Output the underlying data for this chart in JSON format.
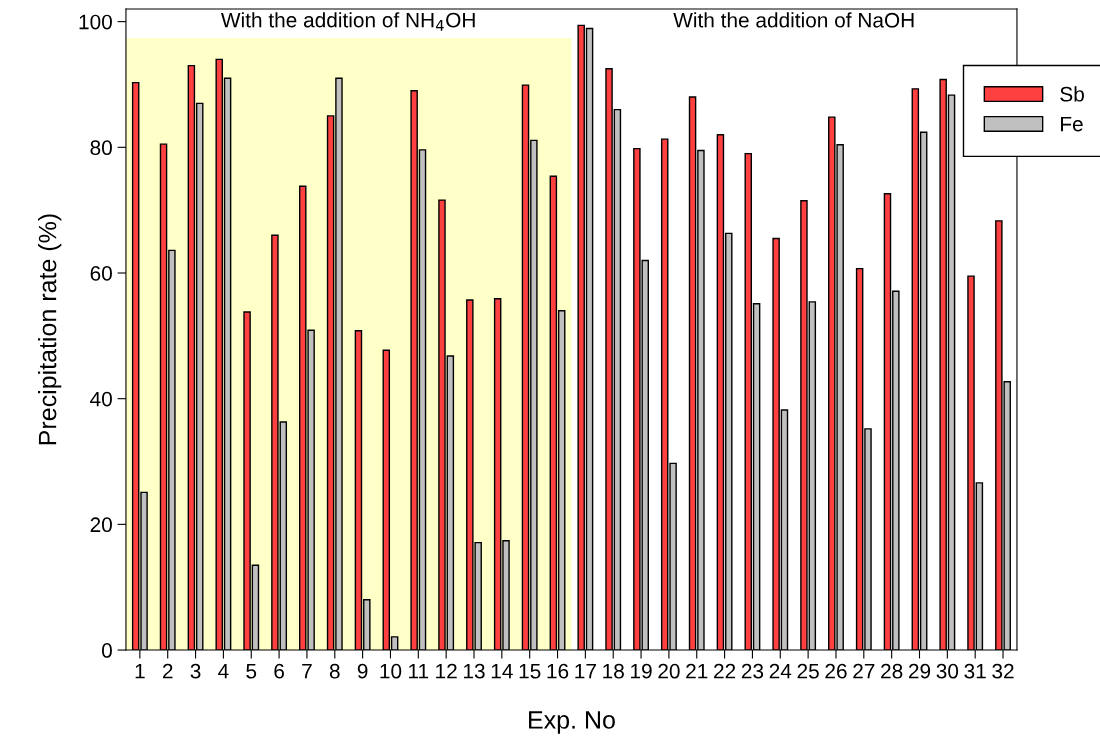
{
  "chart_data": {
    "type": "bar",
    "xlabel": "Exp. No",
    "ylabel": "Precipitation rate (%)",
    "categories": [
      "1",
      "2",
      "3",
      "4",
      "5",
      "6",
      "7",
      "8",
      "9",
      "10",
      "11",
      "12",
      "13",
      "14",
      "15",
      "16",
      "17",
      "18",
      "19",
      "20",
      "21",
      "22",
      "23",
      "24",
      "25",
      "26",
      "27",
      "28",
      "29",
      "30",
      "31",
      "32"
    ],
    "series": [
      {
        "name": "Sb",
        "color": "#ff4040",
        "values": [
          90.3,
          80.5,
          93,
          94,
          53.8,
          66,
          73.8,
          85,
          50.8,
          47.7,
          89,
          71.6,
          55.7,
          55.9,
          89.9,
          75.4,
          99.4,
          92.5,
          79.8,
          81.3,
          88,
          82,
          79,
          65.5,
          71.5,
          84.8,
          60.7,
          72.6,
          89.3,
          90.8,
          59.5,
          68.3
        ]
      },
      {
        "name": "Fe",
        "color": "#c0c0c0",
        "values": [
          25.1,
          63.6,
          87,
          91,
          13.5,
          36.3,
          50.9,
          91,
          8,
          2.1,
          79.6,
          46.8,
          17.1,
          17.4,
          81.1,
          54,
          98.9,
          86,
          62,
          29.7,
          79.5,
          66.3,
          55.1,
          38.2,
          55.4,
          80.4,
          35.2,
          57.1,
          82.4,
          88.3,
          26.6,
          42.7
        ]
      }
    ],
    "ylim": [
      0,
      102
    ],
    "yticks": [
      0,
      20,
      40,
      60,
      80,
      100
    ],
    "bands": [
      {
        "axis": "x",
        "from": "1",
        "to": "16",
        "label": "With the addition of NH$_{4}$OH",
        "color": "#ffffc8"
      }
    ],
    "annotations": [
      "With the addition of NaOH"
    ],
    "legend": "top right",
    "grid": false
  }
}
